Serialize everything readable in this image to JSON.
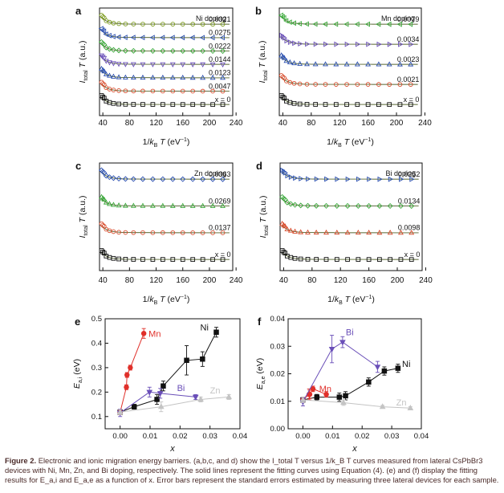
{
  "caption": {
    "label": "Figure 2.",
    "text": "Electronic and ionic migration energy barriers. (a,b,c, and d) show the I_total T versus 1/k_B T curves measured from lateral CsPbBr3 devices with Ni, Mn, Zn, and Bi doping, respectively. The solid lines represent the fitting curves using Equation (4). (e) and (f) display the fitting results for E_a,i and E_a,e as a function of x. Error bars represent the standard errors estimated by measuring three lateral devices for each sample."
  },
  "colors": {
    "Ni": "#111111",
    "Mn": "#e0302a",
    "Zn": "#c4c4c4",
    "Bi": "#6a4fb8",
    "olive": "#7a9a1a",
    "green": "#3aa83a",
    "blue": "#2a4fb0",
    "red": "#d84a2a",
    "grey": "#7a7a7a"
  },
  "chart_data": [
    {
      "type": "line",
      "panel": "a",
      "title": "Ni doping",
      "xlabel": "1/k_B T (eV^-1)",
      "ylabel": "I_total T (a.u.)",
      "xticks": [
        "40",
        "80",
        "120",
        "160",
        "200",
        "240"
      ],
      "xlim": [
        35,
        235
      ],
      "marker_sequence": [
        "square",
        "circle",
        "triangle-up",
        "triangle-down",
        "diamond",
        "triangle-left",
        "circle"
      ],
      "series": [
        {
          "label": "x = 0",
          "color": "#111111",
          "marker": "square"
        },
        {
          "label": "0.0047",
          "color": "#d84a2a",
          "marker": "circle"
        },
        {
          "label": "0.0123",
          "color": "#2a4fb0",
          "marker": "triangle-up"
        },
        {
          "label": "0.0144",
          "color": "#6a4fb8",
          "marker": "triangle-down"
        },
        {
          "label": "0.0222",
          "color": "#3aa83a",
          "marker": "diamond"
        },
        {
          "label": "0.0275",
          "color": "#2a4fb0",
          "marker": "triangle-left"
        },
        {
          "label": "0.0321",
          "color": "#7a9a1a",
          "marker": "circle"
        }
      ]
    },
    {
      "type": "line",
      "panel": "b",
      "title": "Mn doping",
      "xlabel": "1/k_B T (eV^-1)",
      "ylabel": "I_total T (a.u.)",
      "xticks": [
        "40",
        "80",
        "120",
        "160",
        "200",
        "240"
      ],
      "xlim": [
        35,
        235
      ],
      "series": [
        {
          "label": "x = 0",
          "color": "#111111",
          "marker": "square"
        },
        {
          "label": "0.0021",
          "color": "#d84a2a",
          "marker": "circle"
        },
        {
          "label": "0.0023",
          "color": "#2a4fb0",
          "marker": "triangle-up"
        },
        {
          "label": "0.0034",
          "color": "#6a4fb8",
          "marker": "triangle-right"
        },
        {
          "label": "0.0079",
          "color": "#3aa83a",
          "marker": "triangle-left"
        }
      ]
    },
    {
      "type": "line",
      "panel": "c",
      "title": "Zn doping",
      "xlabel": "1/k_B T (eV^-1)",
      "ylabel": "I_total T (a.u.)",
      "xticks": [
        "40",
        "80",
        "120",
        "160",
        "200",
        "240"
      ],
      "xlim": [
        35,
        235
      ],
      "series": [
        {
          "label": "x = 0",
          "color": "#111111",
          "marker": "square"
        },
        {
          "label": "0.0137",
          "color": "#d84a2a",
          "marker": "circle"
        },
        {
          "label": "0.0269",
          "color": "#3aa83a",
          "marker": "triangle-up"
        },
        {
          "label": "0.0363",
          "color": "#2a4fb0",
          "marker": "diamond"
        }
      ]
    },
    {
      "type": "line",
      "panel": "d",
      "title": "Bi doping",
      "xlabel": "1/k_B T (eV^-1)",
      "ylabel": "I_total T (a.u.)",
      "xticks": [
        "40",
        "80",
        "120",
        "160",
        "200",
        "240"
      ],
      "xlim": [
        35,
        235
      ],
      "series": [
        {
          "label": "x = 0",
          "color": "#111111",
          "marker": "square"
        },
        {
          "label": "0.0098",
          "color": "#d84a2a",
          "marker": "triangle-up"
        },
        {
          "label": "0.0134",
          "color": "#3aa83a",
          "marker": "diamond"
        },
        {
          "label": "0.0252",
          "color": "#2a4fb0",
          "marker": "triangle-right"
        }
      ]
    },
    {
      "type": "scatter",
      "panel": "e",
      "xlabel": "x",
      "ylabel": "E_a,i (eV)",
      "xlim": [
        -0.005,
        0.04
      ],
      "ylim": [
        0.05,
        0.5
      ],
      "xticks": [
        0.0,
        0.01,
        0.02,
        0.03,
        0.04
      ],
      "yticks": [
        0.1,
        0.2,
        0.3,
        0.4,
        0.5
      ],
      "series": [
        {
          "name": "Ni",
          "color": "#111111",
          "marker": "square",
          "x": [
            0,
            0.0047,
            0.0123,
            0.0144,
            0.0222,
            0.0275,
            0.0321
          ],
          "y": [
            0.118,
            0.14,
            0.17,
            0.225,
            0.33,
            0.335,
            0.445
          ],
          "err": [
            0.01,
            0.01,
            0.02,
            0.02,
            0.06,
            0.03,
            0.02
          ]
        },
        {
          "name": "Mn",
          "color": "#e0302a",
          "marker": "circle",
          "x": [
            0,
            0.0021,
            0.0023,
            0.0034,
            0.0079
          ],
          "y": [
            0.118,
            0.22,
            0.27,
            0.3,
            0.44
          ],
          "err": [
            0.01,
            0.01,
            0.01,
            0.01,
            0.02
          ]
        },
        {
          "name": "Bi",
          "color": "#6a4fb8",
          "marker": "triangle-down",
          "x": [
            0,
            0.0098,
            0.0134,
            0.0252
          ],
          "y": [
            0.115,
            0.2,
            0.195,
            0.18
          ],
          "err": [
            0.015,
            0.02,
            0.02,
            0.01
          ]
        },
        {
          "name": "Zn",
          "color": "#c4c4c4",
          "marker": "triangle-up",
          "x": [
            0,
            0.0137,
            0.0269,
            0.0363
          ],
          "y": [
            0.118,
            0.14,
            0.17,
            0.18
          ],
          "err": [
            0.01,
            0.02,
            0.01,
            0.01
          ]
        }
      ]
    },
    {
      "type": "scatter",
      "panel": "f",
      "xlabel": "x",
      "ylabel": "E_a,e (eV)",
      "xlim": [
        -0.005,
        0.04
      ],
      "ylim": [
        0.0,
        0.04
      ],
      "xticks": [
        0.0,
        0.01,
        0.02,
        0.03,
        0.04
      ],
      "yticks": [
        0.0,
        0.01,
        0.02,
        0.03,
        0.04
      ],
      "series": [
        {
          "name": "Ni",
          "color": "#111111",
          "marker": "square",
          "x": [
            0,
            0.0047,
            0.0123,
            0.0144,
            0.0222,
            0.0275,
            0.0321
          ],
          "y": [
            0.0105,
            0.0115,
            0.0115,
            0.012,
            0.017,
            0.021,
            0.022
          ],
          "err": [
            0.001,
            0.001,
            0.0015,
            0.0015,
            0.0015,
            0.0015,
            0.0015
          ]
        },
        {
          "name": "Mn",
          "color": "#e0302a",
          "marker": "circle",
          "x": [
            0,
            0.0021,
            0.0023,
            0.0034,
            0.0079
          ],
          "y": [
            0.0105,
            0.0125,
            0.0125,
            0.0145,
            0.0125
          ],
          "err": [
            0.001,
            0.002,
            0.0015,
            0.001,
            0.001
          ]
        },
        {
          "name": "Bi",
          "color": "#6a4fb8",
          "marker": "triangle-down",
          "x": [
            0,
            0.0098,
            0.0134,
            0.0252
          ],
          "y": [
            0.0098,
            0.029,
            0.0315,
            0.0225
          ],
          "err": [
            0.0015,
            0.005,
            0.002,
            0.002
          ]
        },
        {
          "name": "Zn",
          "color": "#c4c4c4",
          "marker": "triangle-up",
          "x": [
            0,
            0.0137,
            0.0269,
            0.0363
          ],
          "y": [
            0.0105,
            0.0095,
            0.008,
            0.0075
          ],
          "err": [
            0.001,
            0.001,
            0.0005,
            0.0005
          ]
        }
      ]
    }
  ]
}
